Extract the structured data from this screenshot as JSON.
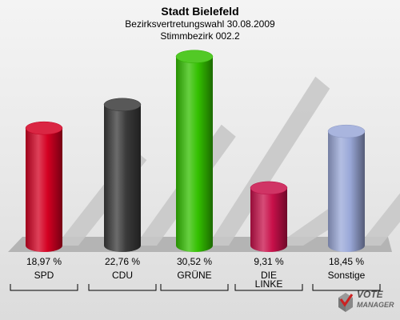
{
  "header": {
    "title": "Stadt Bielefeld",
    "subtitle": "Bezirksvertretungswahl 30.08.2009",
    "district": "Stimmbezirk 002.2"
  },
  "chart_data": {
    "type": "bar",
    "categories": [
      "SPD",
      "CDU",
      "GRÜNE",
      "DIE LINKE",
      "Sonstige"
    ],
    "category_lines": [
      [
        "SPD"
      ],
      [
        "CDU"
      ],
      [
        "GRÜNE"
      ],
      [
        "DIE",
        "LINKE"
      ],
      [
        "Sonstige"
      ]
    ],
    "values": [
      18.97,
      22.76,
      30.52,
      9.31,
      18.45
    ],
    "value_labels": [
      "18,97 %",
      "22,76 %",
      "30,52 %",
      "9,31 %",
      "18,45 %"
    ],
    "colors": [
      "#d40022",
      "#3a3a3a",
      "#33c000",
      "#c8104a",
      "#9aa8d8"
    ],
    "ylim": [
      0,
      31
    ]
  },
  "logo": {
    "line1": "VOTE",
    "line2": "MANAGER"
  }
}
